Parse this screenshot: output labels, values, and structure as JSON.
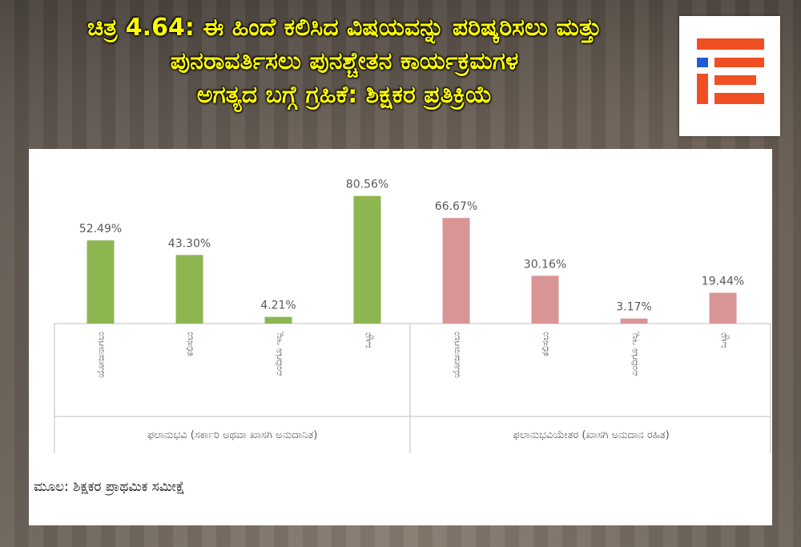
{
  "title_lines": [
    "ಚಿತ್ರ 4.64: ಈ ಹಿಂದೆ ಕಲಿಸಿದ ವಿಷಯವನ್ನು ಪರಿಷ್ಕರಿಸಲು ಮತ್ತು",
    "ಪುನರಾವರ್ತಿಸಲು ಪುನಶ್ಚೇತನ ಕಾರ್ಯಕ್ರಮಗಳ",
    "ಅಗತ್ಯದ ಬಗ್ಗೆ ಗ್ರಹಿಕೆ: ಶಿಕ್ಷಕರ ಪ್ರತಿಕ್ರಿಯೆ"
  ],
  "source_label": "ಮೂಲ: ಶಿಕ್ಷಕರ ಪ್ರಾಥಮಿಕ ಸಮೀಕ್ಷೆ",
  "logo": {
    "icon": "ie-logo-icon",
    "colors": [
      "#f04e23",
      "#1f5bd6"
    ]
  },
  "chart_data": {
    "type": "bar",
    "ylim": [
      0,
      90
    ],
    "grid": false,
    "groups": [
      {
        "label": "ಫಲಾನುಭವಿ (ಸರ್ಕಾರಿ ಅಥವಾ ಖಾಸಗಿ ಅನುದಾನಿತ)",
        "color": "#8db550",
        "categories": [
          "ಯೋಜನಾಗಲು",
          "ಕಲಿಸಲು",
          "ಎಂದಿಗೂ ಇಲ್ಲ",
          "ಒಟ್ಟು"
        ],
        "values": [
          52.49,
          43.3,
          4.21,
          80.56
        ],
        "labels": [
          "52.49%",
          "43.30%",
          "4.21%",
          "80.56%"
        ]
      },
      {
        "label": "ಫಲಾನುಭವಿಯೇತರ (ಖಾಸಗಿ ಅನುದಾನ ರಹಿತ)",
        "color": "#d99595",
        "categories": [
          "ಯೋಜನಾಗಲು",
          "ಕಲಿಸಲು",
          "ಎಂದಿಗೂ ಇಲ್ಲ",
          "ಒಟ್ಟು"
        ],
        "values": [
          66.67,
          30.16,
          3.17,
          19.44
        ],
        "labels": [
          "66.67%",
          "30.16%",
          "3.17%",
          "19.44%"
        ]
      }
    ]
  }
}
